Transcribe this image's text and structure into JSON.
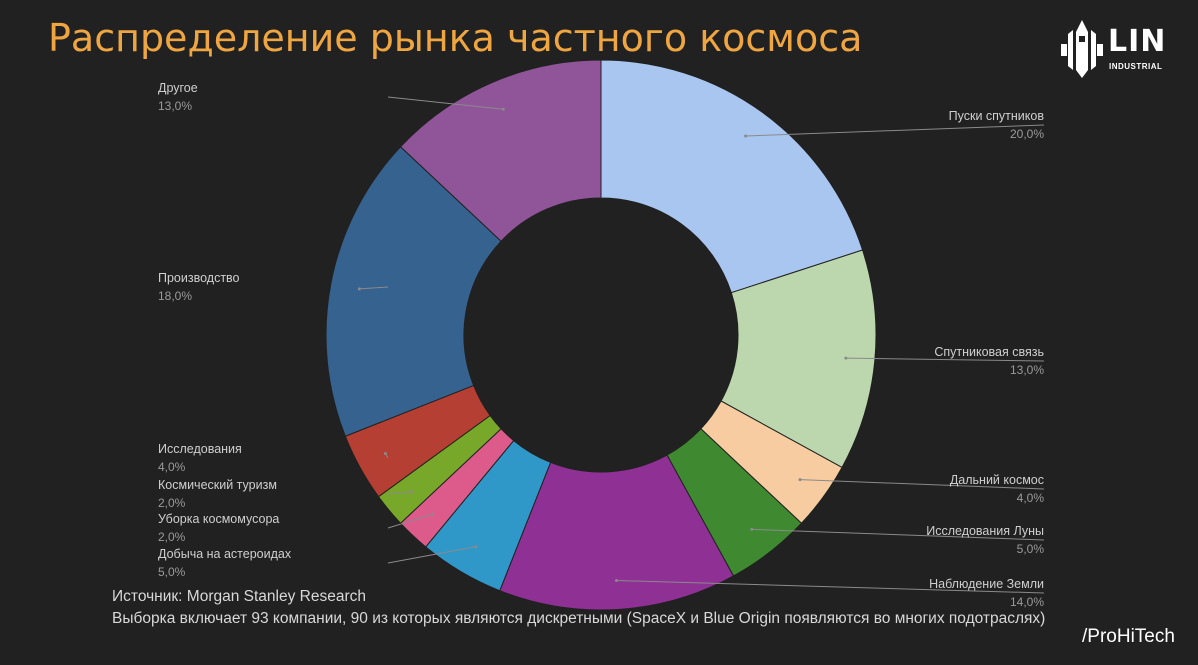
{
  "title": "Распределение рынка частного космоса",
  "logo": {
    "text": "LIN",
    "sub": "INDUSTRIAL"
  },
  "chart_data": {
    "type": "pie",
    "donut": true,
    "title": "Распределение рынка частного космоса",
    "legend": "labels-outside",
    "slices": [
      {
        "label": "Пуски спутников",
        "value": 20.0,
        "display": "20,0%",
        "color": "#a8c6ef",
        "side": "right"
      },
      {
        "label": "Спутниковая связь",
        "value": 13.0,
        "display": "13,0%",
        "color": "#bcd6ae",
        "side": "right"
      },
      {
        "label": "Дальний космос",
        "value": 4.0,
        "display": "4,0%",
        "color": "#f7cca0",
        "side": "right"
      },
      {
        "label": "Исследования Луны",
        "value": 5.0,
        "display": "5,0%",
        "color": "#3f8a31",
        "side": "right"
      },
      {
        "label": "Наблюдение Земли",
        "value": 14.0,
        "display": "14,0%",
        "color": "#8e3094",
        "side": "right"
      },
      {
        "label": "Добыча на астероидах",
        "value": 5.0,
        "display": "5,0%",
        "color": "#3098c8",
        "side": "left"
      },
      {
        "label": "Уборка космомусора",
        "value": 2.0,
        "display": "2,0%",
        "color": "#dc5b8b",
        "side": "left"
      },
      {
        "label": "Космический туризм",
        "value": 2.0,
        "display": "2,0%",
        "color": "#78a82a",
        "side": "left"
      },
      {
        "label": "Исследования",
        "value": 4.0,
        "display": "4,0%",
        "color": "#b43f32",
        "side": "left"
      },
      {
        "label": "Производство",
        "value": 18.0,
        "display": "18,0%",
        "color": "#35628f",
        "side": "left"
      },
      {
        "label": "Другое",
        "value": 13.0,
        "display": "13,0%",
        "color": "#8f5598",
        "side": "left"
      }
    ]
  },
  "footer": {
    "source": "Источник: Morgan Stanley Research",
    "note": "Выборка включает 93 компании, 90 из которых являются дискретными (SpaceX и Blue Origin появляются во многих подотраслях)"
  },
  "brand": "/ProHiTech"
}
